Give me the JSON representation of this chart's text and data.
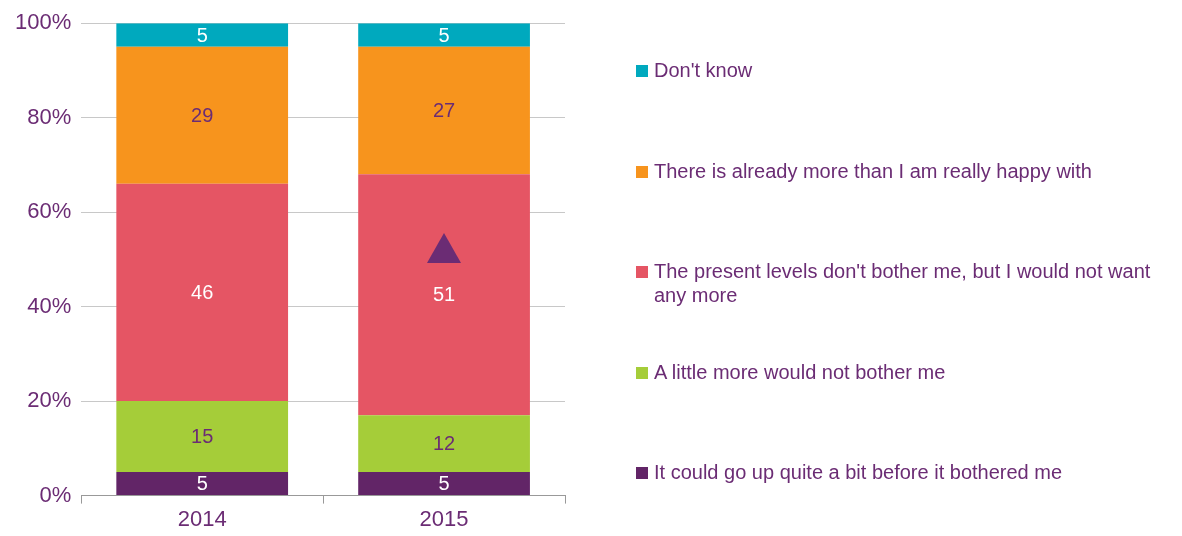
{
  "chart_data": {
    "type": "bar",
    "stacked": true,
    "categories": [
      "2014",
      "2015"
    ],
    "series": [
      {
        "name": "It could go up quite a bit before it bothered me",
        "color": "#622567",
        "values": [
          5,
          5
        ]
      },
      {
        "name": "A little more would not bother me",
        "color": "#a5cd39",
        "values": [
          15,
          12
        ]
      },
      {
        "name": "The present levels don't bother me, but I would not want any more",
        "color": "#e55564",
        "values": [
          46,
          51
        ]
      },
      {
        "name": "There is already more than I am really happy with",
        "color": "#f7941d",
        "values": [
          29,
          27
        ]
      },
      {
        "name": "Don't know",
        "color": "#00a9be",
        "values": [
          5,
          5
        ]
      }
    ],
    "ylim": [
      0,
      100
    ],
    "yticks": [
      {
        "value": 0,
        "label": "0%"
      },
      {
        "value": 20,
        "label": "20%"
      },
      {
        "value": 40,
        "label": "40%"
      },
      {
        "value": 60,
        "label": "60%"
      },
      {
        "value": 80,
        "label": "80%"
      },
      {
        "value": 100,
        "label": "100%"
      }
    ],
    "grid": "y",
    "legend": "right",
    "data_labels": true
  }
}
